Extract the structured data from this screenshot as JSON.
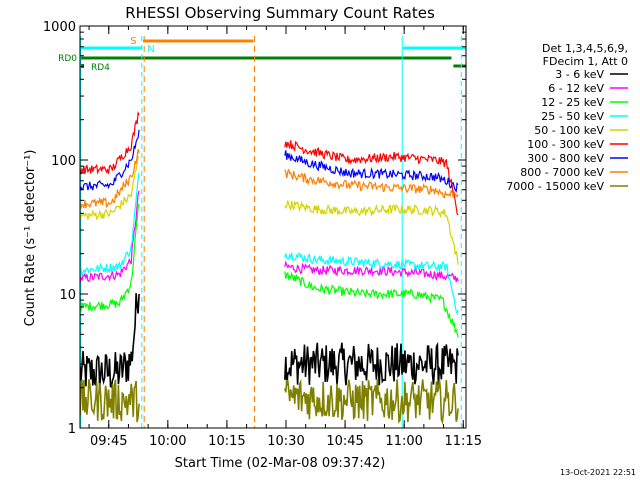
{
  "chart_data": {
    "type": "line",
    "title": "RHESSI Observing Summary Count Rates",
    "xlabel": "Start Time (02-Mar-08 09:37:42)",
    "ylabel": "Count Rate (s⁻¹ detector⁻¹)",
    "yscale": "log",
    "ylim": [
      1,
      1000
    ],
    "xlim_minutes": [
      0,
      98
    ],
    "x_ticks": [
      {
        "t": 7.3,
        "label": "09:45"
      },
      {
        "t": 22.3,
        "label": "10:00"
      },
      {
        "t": 37.3,
        "label": "10:15"
      },
      {
        "t": 52.3,
        "label": "10:30"
      },
      {
        "t": 67.3,
        "label": "10:45"
      },
      {
        "t": 82.3,
        "label": "11:00"
      },
      {
        "t": 97.3,
        "label": "11:15"
      }
    ],
    "y_ticks": [
      {
        "v": 1,
        "label": "1"
      },
      {
        "v": 10,
        "label": "10"
      },
      {
        "v": 100,
        "label": "100"
      },
      {
        "v": 1000,
        "label": "1000"
      }
    ],
    "legend_header": [
      "Det 1,3,4,5,6,9,",
      "FDecim 1, Att 0"
    ],
    "legend_position": "top-right",
    "series": [
      {
        "name": "3 - 6 keV",
        "color": "#000000",
        "segments": [
          [
            [
              0,
              2.6
            ],
            [
              10,
              2.6
            ],
            [
              13,
              3.2
            ],
            [
              15,
              12
            ]
          ],
          [
            [
              52,
              3
            ],
            [
              65,
              3
            ],
            [
              85,
              3
            ],
            [
              96,
              2.9
            ]
          ]
        ]
      },
      {
        "name": "6 - 12 keV",
        "color": "#ff00ff",
        "segments": [
          [
            [
              0,
              13
            ],
            [
              10,
              14
            ],
            [
              13,
              18
            ],
            [
              15,
              60
            ]
          ],
          [
            [
              52,
              16
            ],
            [
              60,
              15
            ],
            [
              75,
              15
            ],
            [
              90,
              14
            ],
            [
              96,
              13
            ]
          ]
        ]
      },
      {
        "name": "12 - 25 keV",
        "color": "#00ff00",
        "segments": [
          [
            [
              0,
              8
            ],
            [
              10,
              8.5
            ],
            [
              13,
              12
            ],
            [
              15,
              50
            ]
          ],
          [
            [
              52,
              14
            ],
            [
              60,
              11
            ],
            [
              72,
              10
            ],
            [
              85,
              10
            ],
            [
              92,
              9
            ],
            [
              96,
              5
            ]
          ]
        ]
      },
      {
        "name": "25 - 50 keV",
        "color": "#00ffff",
        "segments": [
          [
            [
              0,
              15
            ],
            [
              10,
              16
            ],
            [
              13,
              22
            ],
            [
              15,
              80
            ]
          ],
          [
            [
              52,
              20
            ],
            [
              60,
              18
            ],
            [
              75,
              17
            ],
            [
              90,
              16
            ],
            [
              93,
              16
            ],
            [
              96,
              7
            ]
          ]
        ]
      },
      {
        "name": "50 - 100 keV",
        "color": "#d4d400",
        "segments": [
          [
            [
              0,
              38
            ],
            [
              8,
              40
            ],
            [
              13,
              55
            ],
            [
              15,
              110
            ]
          ],
          [
            [
              52,
              47
            ],
            [
              60,
              43
            ],
            [
              70,
              41
            ],
            [
              80,
              43
            ],
            [
              90,
              42
            ],
            [
              93,
              40
            ],
            [
              96,
              17
            ]
          ]
        ]
      },
      {
        "name": "100 - 300 keV",
        "color": "#ff0000",
        "segments": [
          [
            [
              0,
              85
            ],
            [
              8,
              85
            ],
            [
              13,
              130
            ],
            [
              15,
              230
            ]
          ],
          [
            [
              52,
              135
            ],
            [
              58,
              118
            ],
            [
              68,
              100
            ],
            [
              80,
              106
            ],
            [
              90,
              100
            ],
            [
              93,
              95
            ],
            [
              96,
              40
            ]
          ]
        ]
      },
      {
        "name": "300 - 800 keV",
        "color": "#0000ff",
        "segments": [
          [
            [
              0,
              63
            ],
            [
              8,
              65
            ],
            [
              13,
              100
            ],
            [
              15,
              160
            ]
          ],
          [
            [
              52,
              110
            ],
            [
              58,
              95
            ],
            [
              68,
              80
            ],
            [
              80,
              78
            ],
            [
              90,
              75
            ],
            [
              93,
              70
            ],
            [
              96,
              62
            ]
          ]
        ]
      },
      {
        "name": "800 - 7000 keV",
        "color": "#ff8000",
        "segments": [
          [
            [
              0,
              47
            ],
            [
              8,
              48
            ],
            [
              13,
              75
            ],
            [
              15,
              120
            ]
          ],
          [
            [
              52,
              80
            ],
            [
              58,
              72
            ],
            [
              68,
              65
            ],
            [
              80,
              62
            ],
            [
              90,
              60
            ],
            [
              93,
              55
            ],
            [
              96,
              57
            ]
          ]
        ]
      },
      {
        "name": "7000 - 15000 keV",
        "color": "#808000",
        "segments": [
          [
            [
              0,
              1.6
            ],
            [
              10,
              1.6
            ],
            [
              15,
              1.6
            ]
          ],
          [
            [
              52,
              1.7
            ],
            [
              70,
              1.6
            ],
            [
              90,
              1.6
            ],
            [
              96,
              1.6
            ]
          ]
        ]
      }
    ],
    "flags": [
      {
        "label": "S",
        "color": "#ff8000",
        "start": 16,
        "end": 44
      },
      {
        "label": "N",
        "color": "#00ffff",
        "start": 16,
        "end": 16
      },
      {
        "label": "RD0",
        "color": "#008000",
        "start": 0,
        "end": 96
      },
      {
        "label": "RD4",
        "color": "#008000",
        "start": 0,
        "end": 0
      }
    ],
    "orange_dashed_times": [
      16.3,
      44.3
    ],
    "cyan_lines": [
      {
        "t": 0.2,
        "style": "solid"
      },
      {
        "t": 15.7,
        "style": "dashed"
      },
      {
        "t": 81.8,
        "style": "solid"
      },
      {
        "t": 96.8,
        "style": "dashed"
      }
    ],
    "footer": "13-Oct-2021 22:51"
  }
}
